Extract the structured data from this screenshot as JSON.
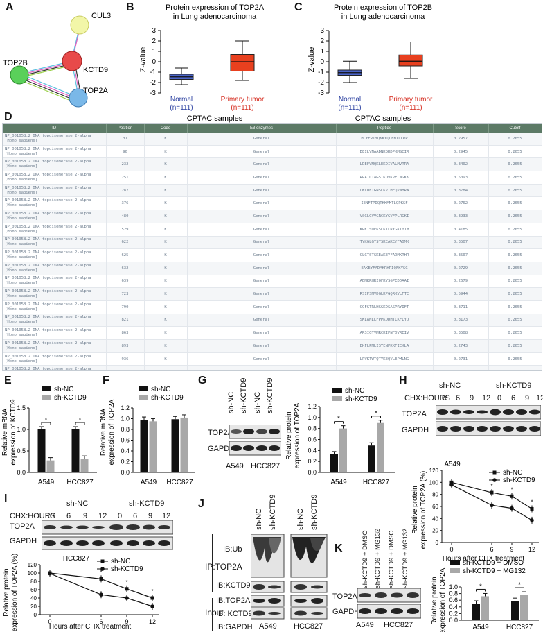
{
  "panels": {
    "A": "A",
    "B": "B",
    "C": "C",
    "D": "D",
    "E": "E",
    "F": "F",
    "G": "G",
    "H": "H",
    "I": "I",
    "J": "J",
    "K": "K"
  },
  "panelA": {
    "nodes": {
      "cul3": "CUL3",
      "kctd9": "KCTD9",
      "top2b": "TOP2B",
      "top2a": "TOP2A"
    }
  },
  "panelB": {
    "title_line1": "Protein expression of TOP2A",
    "title_line2": "in Lung adenocarcinoma",
    "ylabel": "Z-value",
    "xlabel": "CPTAC samples",
    "groups": [
      {
        "name": "Normal",
        "n": "(n=111)"
      },
      {
        "name": "Primary tumor",
        "n": "(n=111)"
      }
    ],
    "yticks": [
      "3",
      "2",
      "1",
      "0",
      "-1",
      "-2",
      "-3"
    ]
  },
  "panelC": {
    "title_line1": "Protein expression of TOP2B",
    "title_line2": "in Lung adenocarcinoma",
    "ylabel": "Z-value",
    "xlabel": "CPTAC samples",
    "groups": [
      {
        "name": "Normal",
        "n": "(n=111)"
      },
      {
        "name": "Primary tumor",
        "n": "(n=111)"
      }
    ],
    "yticks": [
      "3",
      "2",
      "1",
      "0",
      "-1",
      "-2",
      "-3"
    ]
  },
  "table": {
    "headers": [
      "ID",
      "Position",
      "Code",
      "E3 enzymes",
      "Peptide",
      "Score",
      "Cutoff"
    ],
    "rows": [
      [
        "NP_001058.2 DNA topoisomerase 2-alpha [Homo sapiens]",
        "37",
        "K",
        "General",
        "HLYERIYQKKYQLEHILLRP",
        "0.2957",
        "0.2655"
      ],
      [
        "NP_001058.2 DNA topoisomerase 2-alpha [Homo sapiens]",
        "96",
        "K",
        "General",
        "DEILVNAADNKQRDPKMSCIR",
        "0.2945",
        "0.2655"
      ],
      [
        "NP_001058.2 DNA topoisomerase 2-alpha [Homo sapiens]",
        "232",
        "K",
        "General",
        "LDEFVMQKLEKDIVALMVRRA",
        "0.3402",
        "0.2655"
      ],
      [
        "NP_001058.2 DNA topoisomerase 2-alpha [Homo sapiens]",
        "251",
        "K",
        "General",
        "RRATCIAGSTKDVKVFLNGKK",
        "0.5093",
        "0.2655"
      ],
      [
        "NP_001058.2 DNA topoisomerase 2-alpha [Homo sapiens]",
        "287",
        "K",
        "General",
        "DKLDETGNSLKVIHEQVNHRW",
        "0.3784",
        "0.2655"
      ],
      [
        "NP_001058.2 DNA topoisomerase 2-alpha [Homo sapiens]",
        "376",
        "K",
        "General",
        "IENFTPDQTKKMMTLQPKSF",
        "0.2762",
        "0.2655"
      ],
      [
        "NP_001058.2 DNA topoisomerase 2-alpha [Homo sapiens]",
        "480",
        "K",
        "General",
        "VSGLGVVGRCKYGVFPLRGKI",
        "0.3933",
        "0.2655"
      ],
      [
        "NP_001058.2 DNA topoisomerase 2-alpha [Homo sapiens]",
        "529",
        "K",
        "General",
        "KRKISDEKSLKTLRYGKIMIM",
        "0.4185",
        "0.2655"
      ],
      [
        "NP_001058.2 DNA topoisomerase 2-alpha [Homo sapiens]",
        "622",
        "K",
        "General",
        "TYKGLGTSTSKEAKEYFADMK",
        "0.3507",
        "0.2655"
      ],
      [
        "NP_001058.2 DNA topoisomerase 2-alpha [Homo sapiens]",
        "625",
        "K",
        "General",
        "GLGTSTSKEAKEYFADMKRHR",
        "0.3507",
        "0.2655"
      ],
      [
        "NP_001058.2 DNA topoisomerase 2-alpha [Homo sapiens]",
        "632",
        "K",
        "General",
        "EAKEYFADMKRHRIQFKYSG",
        "0.2729",
        "0.2655"
      ],
      [
        "NP_001058.2 DNA topoisomerase 2-alpha [Homo sapiens]",
        "639",
        "K",
        "General",
        "ADMKRHRIQFKYSGPEDDAAI",
        "0.2679",
        "0.2655"
      ],
      [
        "NP_001058.2 DNA topoisomerase 2-alpha [Homo sapiens]",
        "723",
        "K",
        "General",
        "RSIPSMVDGLKPGQRKVLFTC",
        "0.5944",
        "0.2655"
      ],
      [
        "NP_001058.2 DNA topoisomerase 2-alpha [Homo sapiens]",
        "790",
        "K",
        "General",
        "GQFGTRLHGGKDSASPRYIFT",
        "0.3711",
        "0.2655"
      ],
      [
        "NP_001058.2 DNA topoisomerase 2-alpha [Homo sapiens]",
        "821",
        "K",
        "General",
        "SKLANLLFPPKDDHTLKFLYD",
        "0.3173",
        "0.2655"
      ],
      [
        "NP_001058.2 DNA topoisomerase 2-alpha [Homo sapiens]",
        "863",
        "K",
        "General",
        "ARSIGTVMRCKIPNFDVREIV",
        "0.3508",
        "0.2655"
      ],
      [
        "NP_001058.2 DNA topoisomerase 2-alpha [Homo sapiens]",
        "893",
        "K",
        "General",
        "EKFLPMLISYENPKKFIEKLA",
        "0.2743",
        "0.2655"
      ],
      [
        "NP_001058.2 DNA topoisomerase 2-alpha [Homo sapiens]",
        "936",
        "K",
        "General",
        "LPVKTWTQTYKEQVLEPMLNG",
        "0.2731",
        "0.2655"
      ],
      [
        "NP_001058.2 DNA topoisomerase 2-alpha [Homo sapiens]",
        "976",
        "K",
        "General",
        "VRFVVKMTEEKLAEAERVGLH",
        "0.4521",
        "0.2655"
      ],
      [
        "NP_001058.2 DNA topoisomerase 2-alpha [Homo sapiens]",
        "1068",
        "K",
        "General",
        "IQRKVSDPPMKVAMEEAQQKVP",
        "0.4578",
        "0.2655"
      ]
    ]
  },
  "legend": {
    "shnc": "sh-NC",
    "shkctd9": "sh-KCTD9",
    "dmso": "sh-KCTD9 + DMSO",
    "mg132": "sh-KCTD9 + MG132"
  },
  "cells": {
    "a549": "A549",
    "hcc827": "HCC827"
  },
  "panelE": {
    "ylabel1": "Relative mRNA",
    "ylabel2": "expression of KCTD9",
    "yticks": [
      "1.5",
      "1.0",
      "0.5",
      "0.0"
    ],
    "star": "*"
  },
  "panelF": {
    "ylabel1": "Relative mRNA",
    "ylabel2": "expression of TOP2A",
    "yticks": [
      "1.2",
      "1.0",
      "0.8",
      "0.6",
      "0.4",
      "0.2",
      "0.0"
    ]
  },
  "panelG": {
    "lanes": [
      "sh-NC",
      "sh-KCTD9",
      "sh-NC",
      "sh-KCTD9"
    ],
    "bands": [
      "TOP2A",
      "GAPDH"
    ],
    "ylabel1": "Relative protein",
    "ylabel2": "expression of TOP2A",
    "yticks": [
      "1.2",
      "1.0",
      "0.8",
      "0.6",
      "0.4",
      "0.2",
      "0.0"
    ],
    "star": "*"
  },
  "panelH": {
    "group1": "sh-NC",
    "group2": "sh-KCTD9",
    "chx": "CHX:HOURS",
    "times": [
      "0",
      "6",
      "9",
      "12",
      "0",
      "6",
      "9",
      "12"
    ],
    "bands": [
      "TOP2A",
      "GAPDH"
    ],
    "plot_title": "A549",
    "ylabel1": "Relative protein",
    "ylabel2": "expression of TOP2A (%)",
    "xlabel": "Hours after CHX treatment",
    "yticks": [
      "120",
      "100",
      "80",
      "60",
      "40",
      "20",
      "0"
    ],
    "xticks": [
      "0",
      "6",
      "9",
      "12"
    ],
    "star": "*"
  },
  "panelI": {
    "group1": "sh-NC",
    "group2": "sh-KCTD9",
    "chx": "CHX:HOURS",
    "times": [
      "0",
      "6",
      "9",
      "12",
      "0",
      "6",
      "9",
      "12"
    ],
    "bands": [
      "TOP2A",
      "GAPDH"
    ],
    "plot_title": "HCC827",
    "ylabel1": "Relative protein",
    "ylabel2": "expression of TOP2A (%)",
    "xlabel": "Hours after CHX treatment",
    "yticks": [
      "120",
      "100",
      "80",
      "60",
      "40",
      "20",
      "0"
    ],
    "xticks": [
      "0",
      "6",
      "9",
      "12"
    ],
    "star": "*"
  },
  "panelJ": {
    "lanes": [
      "sh-NC",
      "sh-KCTD9",
      "sh-NC",
      "sh-KCTD9"
    ],
    "ip": "IP:TOP2A",
    "input": "Input",
    "blots": [
      "IB:Ub",
      "IB:KCTD9",
      "IB:TOP2A",
      "IB: KCTD9",
      "IB:GAPDH"
    ]
  },
  "panelK": {
    "lanes": [
      "sh-KCTD9 + DMSO",
      "sh-KCTD9 + MG132",
      "sh-KCTD9 + DMSO",
      "sh-KCTD9 + MG132"
    ],
    "bands": [
      "TOP2A",
      "GAPDH"
    ],
    "ylabel1": "Relative protein",
    "ylabel2": "expression of TOP2A",
    "yticks": [
      "1.0",
      "0.8",
      "0.6",
      "0.4",
      "0.2",
      "0.0"
    ],
    "star": "*"
  },
  "colors": {
    "normal": "#2a3fa0",
    "tumor": "#d52b1e",
    "box_normal": "#4a64c8",
    "box_tumor": "#e8401f",
    "table_header": "#5c7a66",
    "bar_black": "#111111",
    "bar_grey": "#a8a8a8"
  },
  "chart_data": [
    {
      "type": "box",
      "panel": "B",
      "categories": [
        "Normal",
        "Primary tumor"
      ],
      "median": [
        -1.45,
        0.0
      ],
      "q1": [
        -1.7,
        -0.9
      ],
      "q3": [
        -1.2,
        0.7
      ],
      "whisker_low": [
        -2.2,
        -1.8
      ],
      "whisker_high": [
        -0.6,
        2.0
      ],
      "ylim": [
        -3,
        3
      ]
    },
    {
      "type": "box",
      "panel": "C",
      "categories": [
        "Normal",
        "Primary tumor"
      ],
      "median": [
        -1.05,
        0.05
      ],
      "q1": [
        -1.3,
        -0.4
      ],
      "q3": [
        -0.8,
        0.65
      ],
      "whisker_low": [
        -2.0,
        -1.6
      ],
      "whisker_high": [
        0.05,
        1.9
      ],
      "ylim": [
        -3,
        3
      ]
    },
    {
      "type": "bar",
      "panel": "E",
      "categories": [
        "A549",
        "HCC827"
      ],
      "series": [
        {
          "name": "sh-NC",
          "values": [
            1.0,
            1.0
          ]
        },
        {
          "name": "sh-KCTD9",
          "values": [
            0.28,
            0.32
          ]
        }
      ],
      "ylim": [
        0,
        1.5
      ]
    },
    {
      "type": "bar",
      "panel": "F",
      "categories": [
        "A549",
        "HCC827"
      ],
      "series": [
        {
          "name": "sh-NC",
          "values": [
            0.98,
            0.99
          ]
        },
        {
          "name": "sh-KCTD9",
          "values": [
            0.95,
            1.02
          ]
        }
      ],
      "ylim": [
        0,
        1.2
      ]
    },
    {
      "type": "bar",
      "panel": "G",
      "categories": [
        "A549",
        "HCC827"
      ],
      "series": [
        {
          "name": "sh-NC",
          "values": [
            0.33,
            0.49
          ]
        },
        {
          "name": "sh-KCTD9",
          "values": [
            0.8,
            0.9
          ]
        }
      ],
      "ylim": [
        0,
        1.2
      ]
    },
    {
      "type": "line",
      "panel": "H",
      "x": [
        0,
        6,
        9,
        12
      ],
      "series": [
        {
          "name": "sh-NC",
          "values": [
            100,
            83,
            77,
            56
          ]
        },
        {
          "name": "sh-KCTD9",
          "values": [
            96,
            62,
            57,
            37
          ]
        }
      ],
      "ylim": [
        0,
        120
      ]
    },
    {
      "type": "line",
      "panel": "I",
      "x": [
        0,
        6,
        9,
        12
      ],
      "series": [
        {
          "name": "sh-NC",
          "values": [
            100,
            86,
            62,
            40
          ]
        },
        {
          "name": "sh-KCTD9",
          "values": [
            99,
            48,
            40,
            20
          ]
        }
      ],
      "ylim": [
        0,
        120
      ]
    },
    {
      "type": "bar",
      "panel": "K",
      "categories": [
        "A549",
        "HCC827"
      ],
      "series": [
        {
          "name": "sh-KCTD9 + DMSO",
          "values": [
            0.5,
            0.58
          ]
        },
        {
          "name": "sh-KCTD9 + MG132",
          "values": [
            0.72,
            0.77
          ]
        }
      ],
      "ylim": [
        0,
        1.0
      ]
    }
  ]
}
